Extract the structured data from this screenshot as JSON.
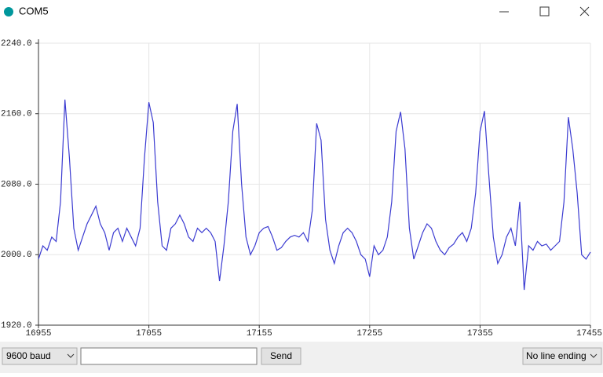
{
  "window": {
    "title": "COM5"
  },
  "chart_data": {
    "type": "line",
    "x": [
      16955,
      16959,
      16963,
      16967,
      16971,
      16975,
      16979,
      16983,
      16987,
      16991,
      16995,
      16999,
      17003,
      17007,
      17011,
      17015,
      17019,
      17023,
      17027,
      17031,
      17035,
      17039,
      17043,
      17047,
      17051,
      17055,
      17059,
      17063,
      17067,
      17071,
      17075,
      17079,
      17083,
      17087,
      17091,
      17095,
      17099,
      17103,
      17107,
      17111,
      17115,
      17119,
      17123,
      17127,
      17131,
      17135,
      17139,
      17143,
      17147,
      17151,
      17155,
      17159,
      17163,
      17167,
      17171,
      17175,
      17179,
      17183,
      17187,
      17191,
      17195,
      17199,
      17203,
      17207,
      17211,
      17215,
      17219,
      17223,
      17227,
      17231,
      17235,
      17239,
      17243,
      17247,
      17251,
      17255,
      17259,
      17263,
      17267,
      17271,
      17275,
      17279,
      17283,
      17287,
      17291,
      17295,
      17299,
      17303,
      17307,
      17311,
      17315,
      17319,
      17323,
      17327,
      17331,
      17335,
      17339,
      17343,
      17347,
      17351,
      17355,
      17359,
      17363,
      17367,
      17371,
      17375,
      17379,
      17383,
      17387,
      17391,
      17395,
      17399,
      17403,
      17407,
      17411,
      17415,
      17419,
      17423,
      17427,
      17431,
      17435,
      17439,
      17443,
      17447,
      17451,
      17455
    ],
    "series": [
      {
        "color": "#3b3bd1",
        "values": [
          1995,
          2010,
          2005,
          2020,
          2015,
          2060,
          2176,
          2110,
          2030,
          2005,
          2020,
          2035,
          2045,
          2055,
          2035,
          2025,
          2005,
          2025,
          2030,
          2015,
          2030,
          2020,
          2010,
          2030,
          2110,
          2173,
          2150,
          2060,
          2010,
          2005,
          2030,
          2035,
          2045,
          2035,
          2020,
          2015,
          2030,
          2025,
          2030,
          2025,
          2015,
          1970,
          2010,
          2060,
          2140,
          2171,
          2080,
          2020,
          2000,
          2010,
          2025,
          2030,
          2032,
          2020,
          2005,
          2008,
          2015,
          2020,
          2022,
          2020,
          2025,
          2015,
          2050,
          2149,
          2130,
          2040,
          2005,
          1990,
          2010,
          2025,
          2030,
          2025,
          2015,
          2000,
          1995,
          1975,
          2010,
          2000,
          2005,
          2020,
          2060,
          2140,
          2162,
          2120,
          2030,
          1995,
          2010,
          2025,
          2035,
          2030,
          2015,
          2005,
          2000,
          2008,
          2012,
          2020,
          2025,
          2015,
          2030,
          2070,
          2140,
          2163,
          2090,
          2020,
          1990,
          2000,
          2020,
          2030,
          2010,
          2060,
          1960,
          2010,
          2005,
          2015,
          2010,
          2012,
          2005,
          2010,
          2015,
          2060,
          2156,
          2120,
          2070,
          2000,
          1995,
          2003
        ]
      }
    ],
    "xlim": [
      16955,
      17455
    ],
    "xticks": [
      16955,
      17055,
      17155,
      17255,
      17355,
      17455
    ],
    "ylim": [
      1920,
      2240
    ],
    "yticks": [
      {
        "value": 1920,
        "label": "1920.0"
      },
      {
        "value": 2000,
        "label": "2000.0"
      },
      {
        "value": 2080,
        "label": "2080.0"
      },
      {
        "value": 2160,
        "label": "2160.0"
      },
      {
        "value": 2240,
        "label": "2240.0"
      }
    ],
    "grid": true
  },
  "controls": {
    "baud": "9600 baud",
    "send": "Send",
    "line_ending": "No line ending"
  }
}
